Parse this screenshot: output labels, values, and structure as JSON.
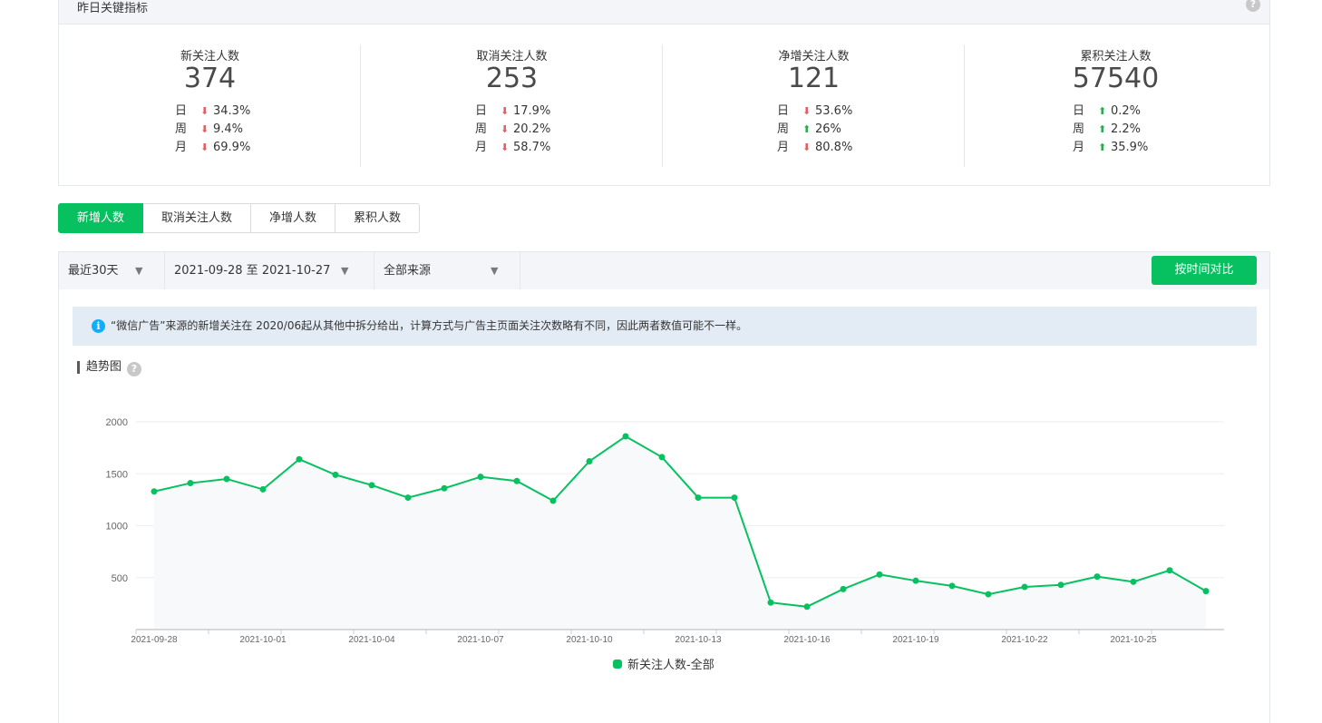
{
  "key_metrics": {
    "title": "昨日关键指标",
    "items": [
      {
        "label": "新关注人数",
        "value": "374",
        "rows": [
          {
            "k": "日",
            "dir": "down",
            "v": "34.3%"
          },
          {
            "k": "周",
            "dir": "down",
            "v": "9.4%"
          },
          {
            "k": "月",
            "dir": "down",
            "v": "69.9%"
          }
        ]
      },
      {
        "label": "取消关注人数",
        "value": "253",
        "rows": [
          {
            "k": "日",
            "dir": "down",
            "v": "17.9%"
          },
          {
            "k": "周",
            "dir": "down",
            "v": "20.2%"
          },
          {
            "k": "月",
            "dir": "down",
            "v": "58.7%"
          }
        ]
      },
      {
        "label": "净增关注人数",
        "value": "121",
        "rows": [
          {
            "k": "日",
            "dir": "down",
            "v": "53.6%"
          },
          {
            "k": "周",
            "dir": "up",
            "v": "26%"
          },
          {
            "k": "月",
            "dir": "down",
            "v": "80.8%"
          }
        ]
      },
      {
        "label": "累积关注人数",
        "value": "57540",
        "rows": [
          {
            "k": "日",
            "dir": "up",
            "v": "0.2%"
          },
          {
            "k": "周",
            "dir": "up",
            "v": "2.2%"
          },
          {
            "k": "月",
            "dir": "up",
            "v": "35.9%"
          }
        ]
      }
    ]
  },
  "tabs": [
    {
      "label": "新增人数",
      "active": true
    },
    {
      "label": "取消关注人数",
      "active": false
    },
    {
      "label": "净增人数",
      "active": false
    },
    {
      "label": "累积人数",
      "active": false
    }
  ],
  "filters": {
    "period": "最近30天",
    "date_range": "2021-09-28 至 2021-10-27",
    "source": "全部来源",
    "compare_button": "按时间对比"
  },
  "notice": "“微信广告”来源的新增关注在 2020/06起从其他中拆分给出，计算方式与广告主页面关注次数略有不同，因此两者数值可能不一样。",
  "trend_title": "趋势图",
  "colors": {
    "accent": "#07c160",
    "down": "#e15f63",
    "up": "#27ac4f"
  },
  "chart_data": {
    "type": "area",
    "x": [
      "2021-09-28",
      "2021-09-29",
      "2021-09-30",
      "2021-10-01",
      "2021-10-02",
      "2021-10-03",
      "2021-10-04",
      "2021-10-05",
      "2021-10-06",
      "2021-10-07",
      "2021-10-08",
      "2021-10-09",
      "2021-10-10",
      "2021-10-11",
      "2021-10-12",
      "2021-10-13",
      "2021-10-14",
      "2021-10-15",
      "2021-10-16",
      "2021-10-17",
      "2021-10-18",
      "2021-10-19",
      "2021-10-20",
      "2021-10-21",
      "2021-10-22",
      "2021-10-23",
      "2021-10-24",
      "2021-10-25",
      "2021-10-26",
      "2021-10-27"
    ],
    "x_tick_labels": [
      "2021-09-28",
      "2021-10-01",
      "2021-10-04",
      "2021-10-07",
      "2021-10-10",
      "2021-10-13",
      "2021-10-16",
      "2021-10-19",
      "2021-10-22",
      "2021-10-25"
    ],
    "y_ticks": [
      500,
      1000,
      1500,
      2000
    ],
    "ylim": [
      0,
      2000
    ],
    "series": [
      {
        "name": "新关注人数-全部",
        "color": "#07c160",
        "values": [
          1330,
          1410,
          1450,
          1350,
          1640,
          1490,
          1390,
          1270,
          1360,
          1470,
          1430,
          1240,
          1620,
          1860,
          1660,
          1270,
          1270,
          260,
          220,
          390,
          530,
          470,
          420,
          340,
          410,
          430,
          510,
          460,
          570,
          370
        ]
      }
    ],
    "legend": "bottom-center",
    "grid": true
  }
}
